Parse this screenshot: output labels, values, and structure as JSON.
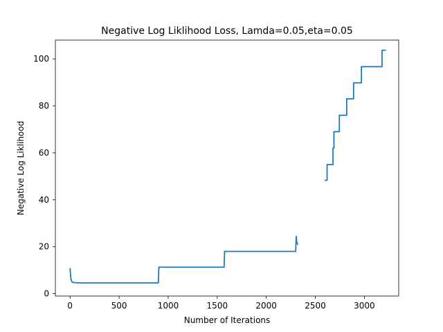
{
  "chart_data": {
    "type": "line",
    "title": "Negative Log Liklihood Loss, Lamda=0.05,eta=0.05",
    "xlabel": "Number of Iterations",
    "ylabel": "Negative Log Liklihood",
    "xlim": [
      -150,
      3350
    ],
    "ylim": [
      -1,
      108
    ],
    "x_ticks": [
      0,
      500,
      1000,
      1500,
      2000,
      2500,
      3000
    ],
    "y_ticks": [
      0,
      20,
      40,
      60,
      80,
      100
    ],
    "grid": false,
    "legend": "none",
    "series": [
      {
        "color": "#1f77b4",
        "segments": [
          {
            "x": [
              0,
              5,
              10,
              20,
              30,
              50,
              100,
              200,
              300,
              400,
              500,
              600,
              700,
              800,
              900,
              905,
              1000,
              1100,
              1200,
              1300,
              1400,
              1500,
              1570,
              1575,
              1700,
              1800,
              1900,
              2000,
              2100,
              2200,
              2300,
              2305,
              2310,
              2320
            ],
            "y": [
              10.7,
              7.8,
              6.0,
              5.0,
              4.8,
              4.7,
              4.6,
              4.6,
              4.6,
              4.6,
              4.6,
              4.6,
              4.6,
              4.6,
              4.6,
              11.3,
              11.3,
              11.3,
              11.3,
              11.3,
              11.3,
              11.3,
              11.3,
              18.0,
              18.0,
              18.0,
              18.0,
              18.0,
              18.0,
              18.0,
              18.0,
              24.5,
              22.0,
              21.0
            ]
          },
          {
            "x": [
              2600,
              2620,
              2620,
              2680,
              2680,
              2690,
              2690,
              2700,
              2700,
              2745,
              2745,
              2820,
              2820,
              2890,
              2890,
              2970,
              2970,
              3180,
              3180,
              3215
            ],
            "y": [
              48.3,
              48.3,
              55.0,
              55.0,
              62.0,
              62.0,
              69.0,
              69.0,
              69.0,
              69.0,
              76.0,
              76.0,
              83.0,
              83.0,
              89.8,
              89.8,
              96.7,
              96.7,
              103.7,
              103.7
            ]
          }
        ]
      }
    ]
  }
}
